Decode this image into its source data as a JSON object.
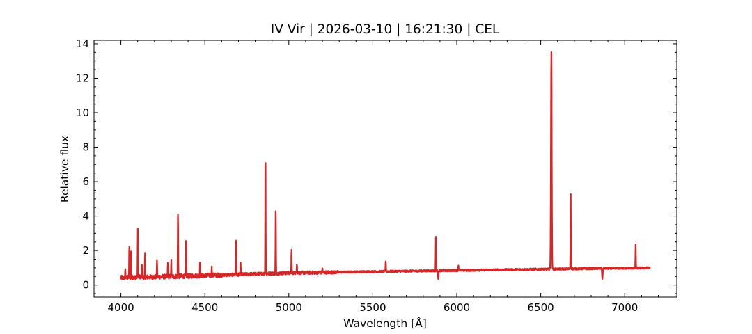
{
  "chart_data": {
    "type": "line",
    "title": "IV Vir | 2026-03-10 | 16:21:30 | CEL",
    "xlabel": "Wavelength [Å]",
    "ylabel": "Relative flux",
    "xlim": [
      3840,
      7310
    ],
    "ylim": [
      -0.7,
      14.2
    ],
    "xticks": [
      4000,
      4500,
      5000,
      5500,
      6000,
      6500,
      7000
    ],
    "yticks": [
      0,
      2,
      4,
      6,
      8,
      10,
      12,
      14
    ],
    "grid": false,
    "series": [
      {
        "color": "#d62728",
        "x_range": [
          4000,
          7150
        ],
        "continuum": [
          [
            4000,
            0.42
          ],
          [
            4500,
            0.55
          ],
          [
            5000,
            0.7
          ],
          [
            5500,
            0.78
          ],
          [
            6000,
            0.85
          ],
          [
            6500,
            0.92
          ],
          [
            7000,
            0.98
          ],
          [
            7150,
            1.0
          ]
        ],
        "emission_lines": [
          {
            "x": 4026,
            "peak": 0.9
          },
          {
            "x": 4050,
            "peak": 2.25
          },
          {
            "x": 4060,
            "peak": 1.9
          },
          {
            "x": 4101,
            "peak": 3.2
          },
          {
            "x": 4125,
            "peak": 1.3
          },
          {
            "x": 4144,
            "peak": 1.85
          },
          {
            "x": 4215,
            "peak": 1.35
          },
          {
            "x": 4280,
            "peak": 1.3
          },
          {
            "x": 4300,
            "peak": 1.4
          },
          {
            "x": 4340,
            "peak": 4.3
          },
          {
            "x": 4388,
            "peak": 2.6
          },
          {
            "x": 4471,
            "peak": 1.45
          },
          {
            "x": 4541,
            "peak": 1.0
          },
          {
            "x": 4686,
            "peak": 2.75
          },
          {
            "x": 4713,
            "peak": 1.25
          },
          {
            "x": 4861,
            "peak": 8.05
          },
          {
            "x": 4922,
            "peak": 4.5
          },
          {
            "x": 5016,
            "peak": 2.05
          },
          {
            "x": 5048,
            "peak": 1.3
          },
          {
            "x": 5200,
            "peak": 1.0
          },
          {
            "x": 5577,
            "peak": 1.4
          },
          {
            "x": 5876,
            "peak": 2.95
          },
          {
            "x": 6010,
            "peak": 1.15
          },
          {
            "x": 6563,
            "peak": 13.55
          },
          {
            "x": 6678,
            "peak": 5.5
          },
          {
            "x": 7065,
            "peak": 2.4
          }
        ],
        "absorption_dips": [
          {
            "x": 5890,
            "depth": 0.45
          },
          {
            "x": 6867,
            "depth": 0.6
          }
        ]
      }
    ]
  }
}
